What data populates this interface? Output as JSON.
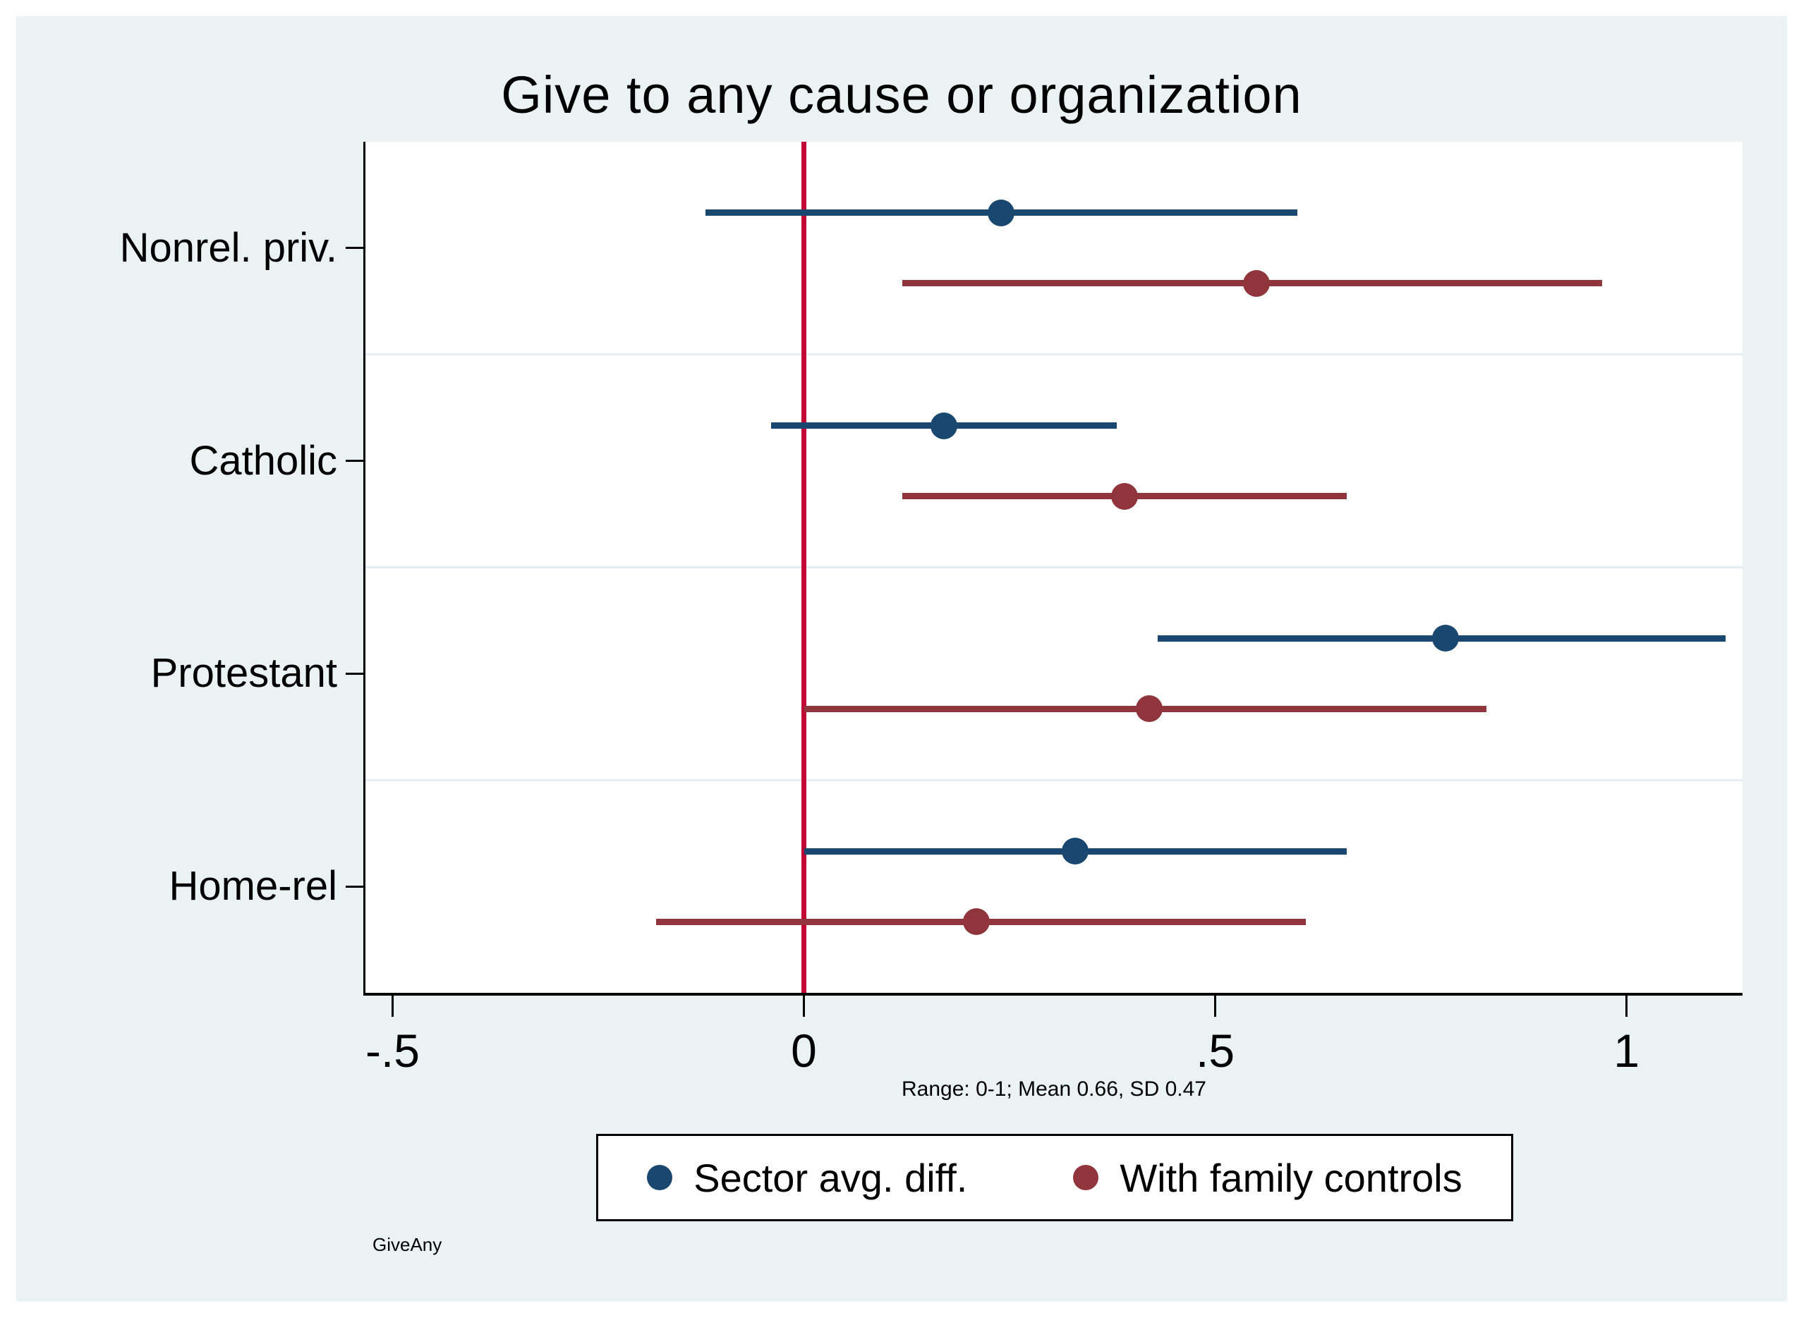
{
  "title": "Give to any cause or organization",
  "note": "Range: 0-1; Mean 0.66, SD 0.47",
  "watermark": "GiveAny",
  "colors": {
    "background": "#ffffff",
    "graph_background": "#eaf2f3",
    "plot_background": "#ffffff",
    "axis": "#000000",
    "grid": "#e4eef4",
    "zero_line": "#c10534",
    "navy": "#1a476f",
    "maroon": "#90353b"
  },
  "legend": [
    {
      "label": "Sector avg. diff.",
      "color": "#1a476f"
    },
    {
      "label": "With family controls",
      "color": "#90353b"
    }
  ],
  "chart_data": {
    "type": "scatter",
    "subtype": "coefficient-plot-with-confidence-intervals",
    "title": "Give to any cause or organization",
    "categories": [
      "Nonrel. priv.",
      "Catholic",
      "Protestant",
      "Home-rel"
    ],
    "series": [
      {
        "name": "Sector avg. diff.",
        "color": "#1a476f",
        "estimates": [
          0.24,
          0.17,
          0.78,
          0.33
        ],
        "ci_low": [
          -0.12,
          -0.04,
          0.43,
          0.0
        ],
        "ci_high": [
          0.6,
          0.38,
          1.12,
          0.66
        ]
      },
      {
        "name": "With family controls",
        "color": "#90353b",
        "estimates": [
          0.55,
          0.39,
          0.42,
          0.21
        ],
        "ci_low": [
          0.12,
          0.12,
          0.0,
          -0.18
        ],
        "ci_high": [
          0.97,
          0.66,
          0.83,
          0.61
        ]
      }
    ],
    "x_ticks": [
      -0.5,
      0,
      0.5,
      1
    ],
    "x_tick_labels": [
      "-.5",
      "0",
      ".5",
      "1"
    ],
    "xlim": [
      -0.533,
      1.141
    ],
    "zero_line": {
      "x": 0,
      "color": "#c10534"
    },
    "grid": true,
    "legend_position": "bottom",
    "xlabel": "",
    "ylabel": ""
  }
}
